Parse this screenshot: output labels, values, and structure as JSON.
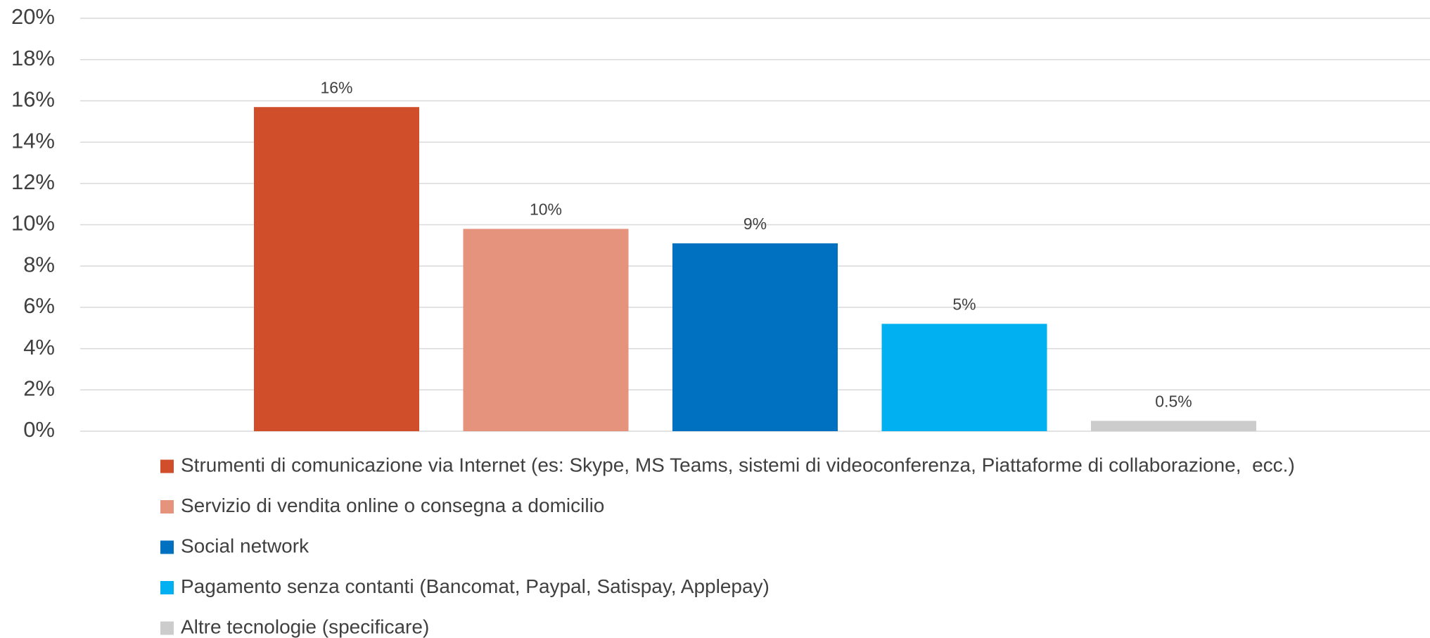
{
  "chart_data": {
    "type": "bar",
    "categories": [
      null
    ],
    "series": [
      {
        "name": "Strumenti di comunicazione via Internet (es: Skype, MS Teams, sistemi di videoconferenza, Piattaforme di collaborazione,  ecc.)",
        "color": "#d04f2a",
        "values": [
          15.7
        ],
        "value_labels": [
          "16%"
        ]
      },
      {
        "name": "Servizio di vendita online o consegna a domicilio",
        "color": "#e5937d",
        "values": [
          9.8
        ],
        "value_labels": [
          "10%"
        ]
      },
      {
        "name": "Social network",
        "color": "#0070c0",
        "values": [
          9.1
        ],
        "value_labels": [
          "9%"
        ]
      },
      {
        "name": "Pagamento senza contanti (Bancomat, Paypal, Satispay, Applepay)",
        "color": "#00b0f0",
        "values": [
          5.2
        ],
        "value_labels": [
          "5%"
        ]
      },
      {
        "name": "Altre tecnologie (specificare)",
        "color": "#cccccc",
        "values": [
          0.5
        ],
        "value_labels": [
          "0.5%"
        ]
      }
    ],
    "ylim": [
      0,
      20
    ],
    "yticks": [
      {
        "value": 0,
        "label": "0%"
      },
      {
        "value": 2,
        "label": "2%"
      },
      {
        "value": 4,
        "label": "4%"
      },
      {
        "value": 6,
        "label": "6%"
      },
      {
        "value": 8,
        "label": "8%"
      },
      {
        "value": 10,
        "label": "10%"
      },
      {
        "value": 12,
        "label": "12%"
      },
      {
        "value": 14,
        "label": "14%"
      },
      {
        "value": 16,
        "label": "16%"
      },
      {
        "value": 18,
        "label": "18%"
      },
      {
        "value": 20,
        "label": "20%"
      }
    ],
    "grid": true,
    "legend": "bottom"
  }
}
